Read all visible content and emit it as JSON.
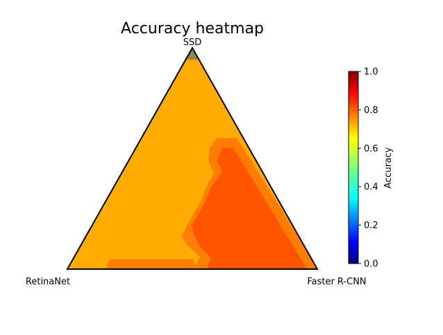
{
  "chart_data": {
    "type": "heatmap",
    "subtype": "ternary",
    "title": "Accuracy heatmap",
    "corners": {
      "top": "SSD",
      "left": "RetinaNet",
      "right": "Faster R-CNN"
    },
    "colorbar": {
      "label": "Accuracy",
      "colormap": "jet",
      "range": [
        0.0,
        1.0
      ],
      "ticks": [
        "0.0",
        "0.2",
        "0.4",
        "0.6",
        "0.8",
        "1.0"
      ]
    },
    "regions": [
      {
        "name": "top-apex",
        "accuracy": 0.55,
        "color": "#8a8a4a"
      },
      {
        "name": "main",
        "accuracy": 0.74,
        "color": "#ffab00"
      },
      {
        "name": "right-region",
        "accuracy": 0.83,
        "color": "#ff5500"
      },
      {
        "name": "boundary",
        "accuracy": 0.79,
        "color": "#ff7e00"
      }
    ]
  }
}
